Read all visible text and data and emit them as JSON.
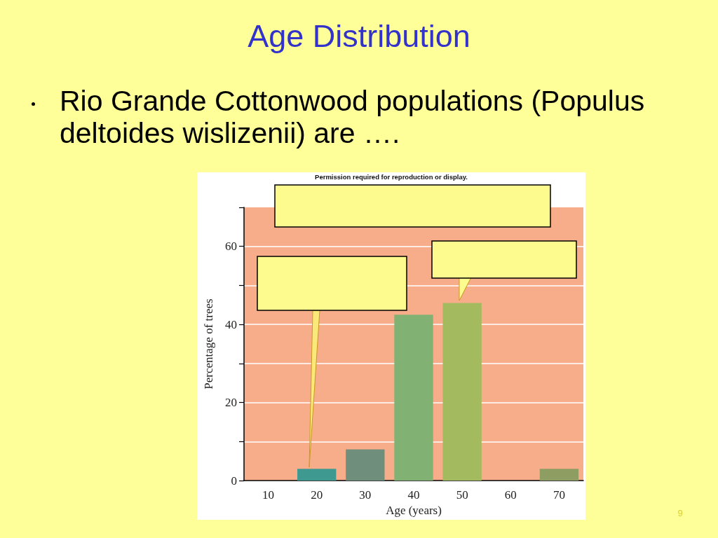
{
  "chart_data": {
    "type": "bar",
    "title": "Age Distribution",
    "subtitle": "Rio Grande Cottonwood populations (Populus deltoides wislizenii) are ….",
    "xlabel": "Age (years)",
    "ylabel": "Percentage of trees",
    "categories": [
      "10",
      "20",
      "30",
      "40",
      "50",
      "60",
      "70"
    ],
    "values": [
      0,
      3,
      8,
      42.5,
      45.5,
      0,
      3
    ],
    "colors": [
      "#3e9a90",
      "#3e9a90",
      "#6f8f7c",
      "#82b273",
      "#a3ba5e",
      "#8e9e63",
      "#8e9e63"
    ],
    "ylim": [
      0,
      70
    ],
    "yticks": [
      0,
      {
        "value": 10,
        "label": null
      },
      20,
      {
        "value": 30,
        "label": null
      },
      40,
      {
        "value": 50,
        "label": null
      },
      60,
      {
        "value": 70,
        "label": null
      }
    ],
    "grid": "y",
    "annotations": [
      "Permission required for reproduction or display.",
      "9"
    ]
  }
}
